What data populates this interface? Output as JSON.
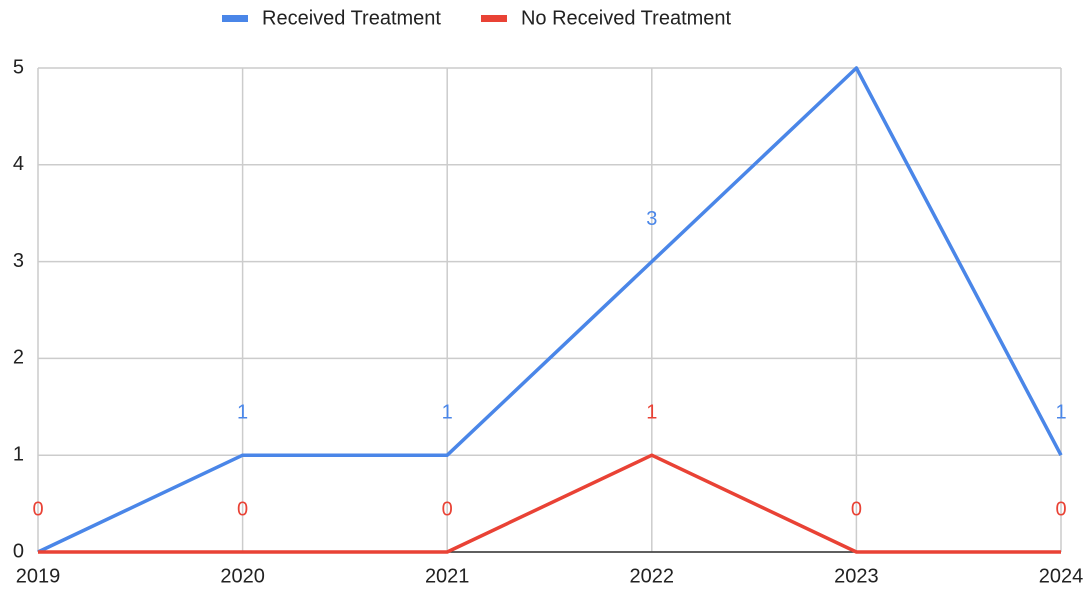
{
  "chart_data": {
    "type": "line",
    "categories": [
      "2019",
      "2020",
      "2021",
      "2022",
      "2023",
      "2024"
    ],
    "series": [
      {
        "name": "Received Treatment",
        "color": "#4a86e8",
        "values": [
          0,
          1,
          1,
          3,
          5,
          1
        ],
        "value_labels": [
          null,
          "1",
          "1",
          "3",
          null,
          "1"
        ]
      },
      {
        "name": "No Received Treatment",
        "color": "#e94235",
        "values": [
          0,
          0,
          0,
          1,
          0,
          0
        ],
        "value_labels": [
          "0",
          "0",
          "0",
          "1",
          "0",
          "0"
        ]
      }
    ],
    "ylim": [
      0,
      5
    ],
    "yticks": [
      0,
      1,
      2,
      3,
      4,
      5
    ],
    "grid": true,
    "legend": "top"
  }
}
